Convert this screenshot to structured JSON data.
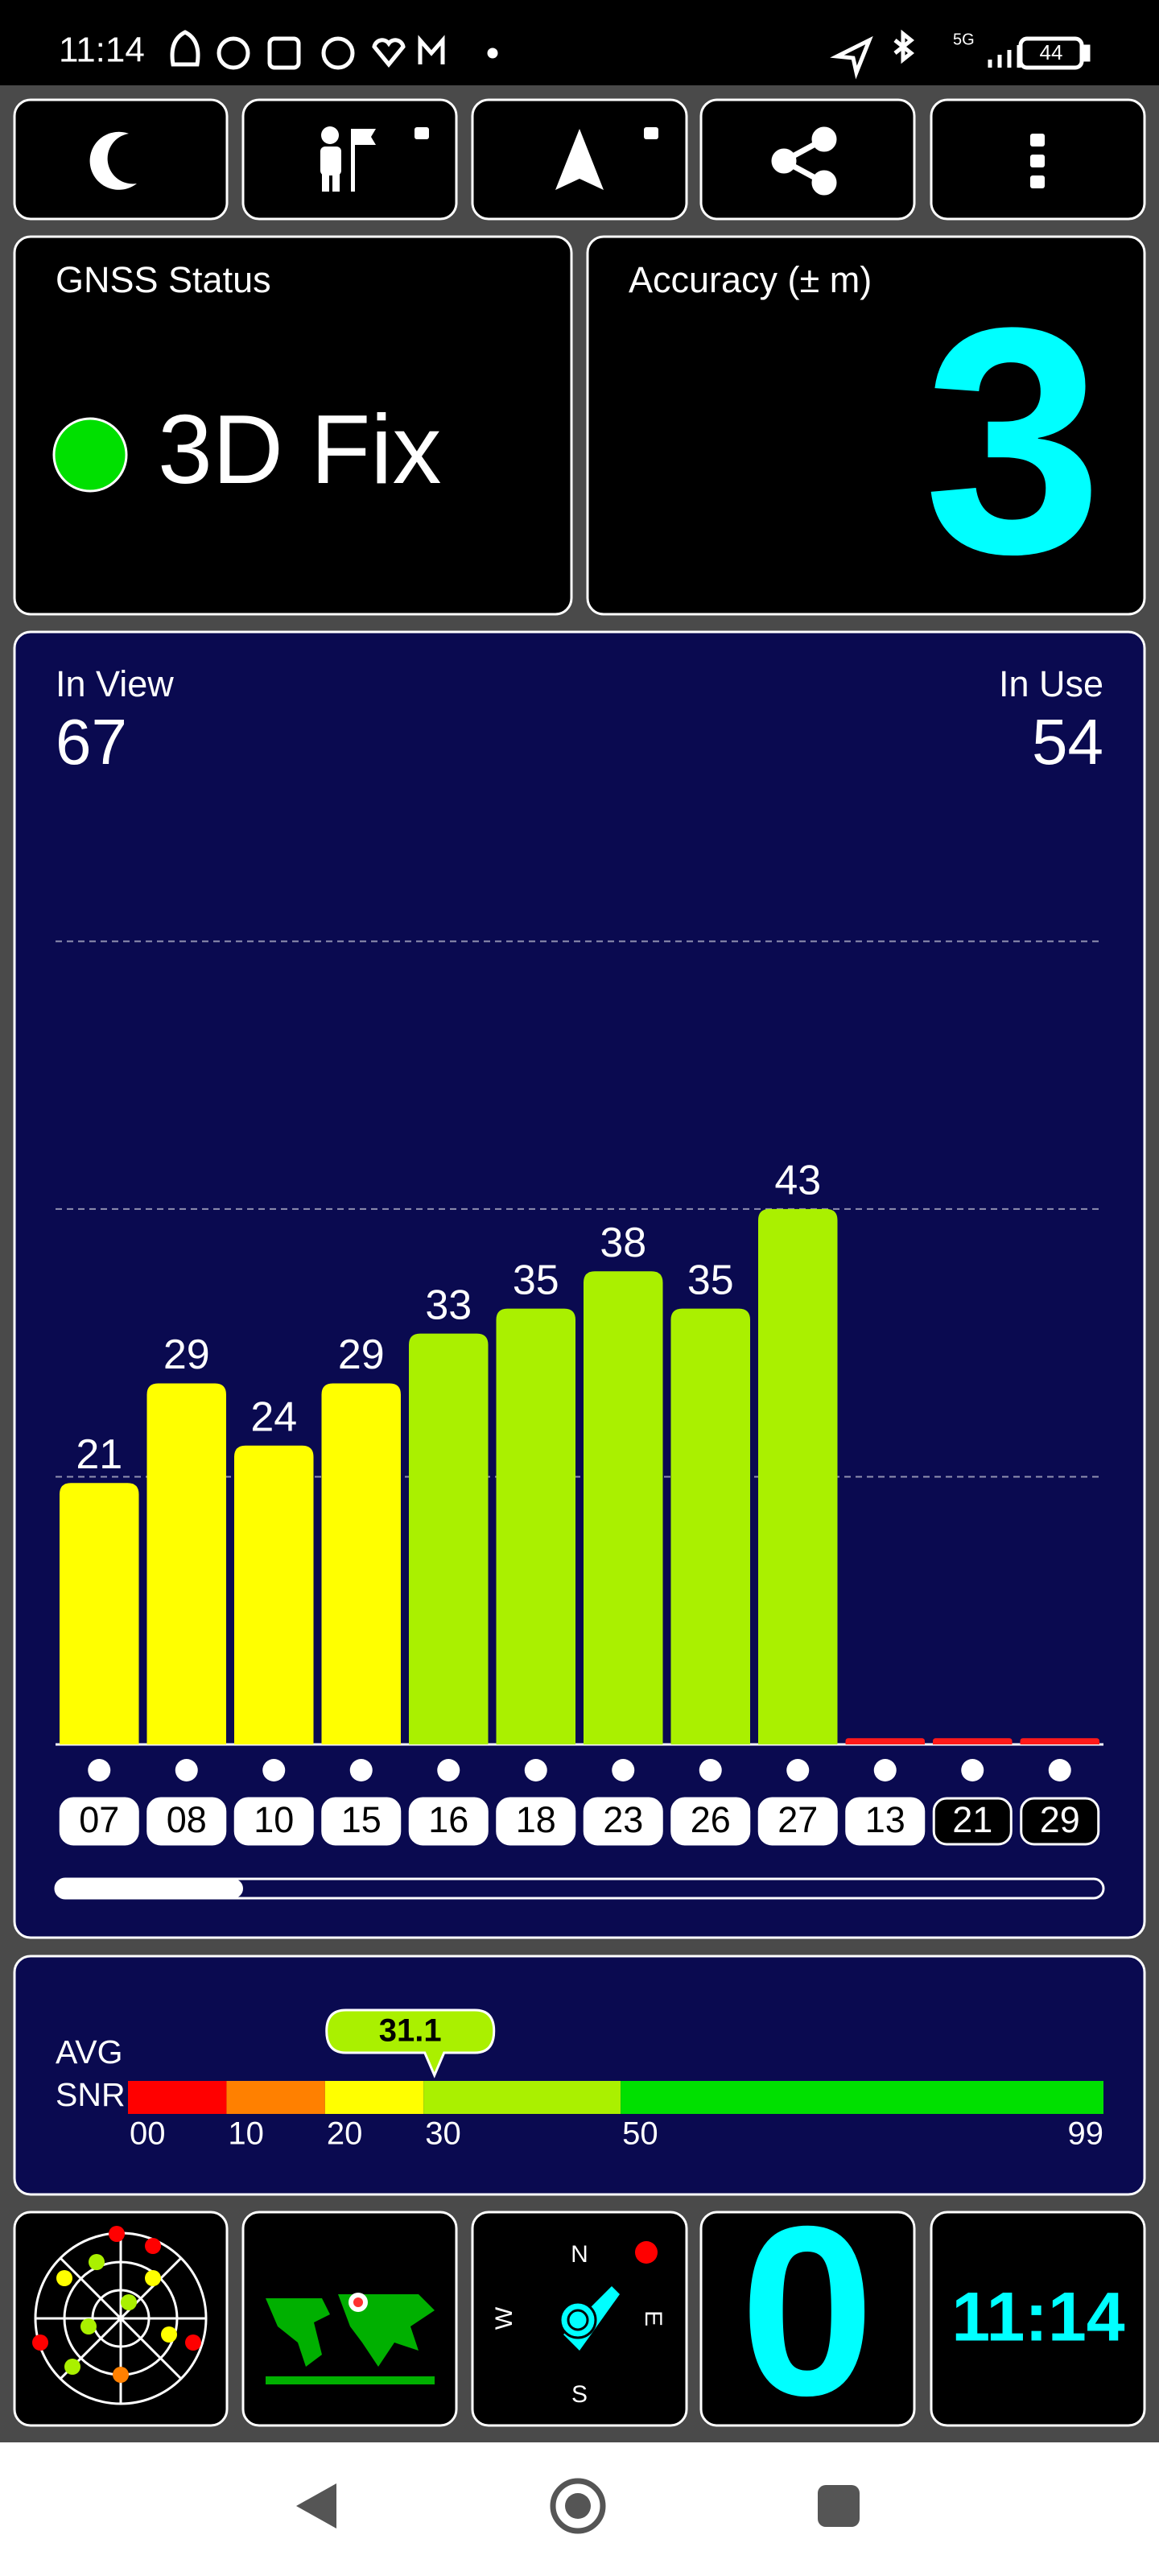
{
  "status_bar": {
    "time": "11:14",
    "network": "5G",
    "battery": "44"
  },
  "gnss_status": {
    "title": "GNSS Status",
    "value": "3D Fix"
  },
  "accuracy": {
    "title": "Accuracy (± m)",
    "value": 3
  },
  "satellites": {
    "in_view_label": "In View",
    "in_view": 67,
    "in_use_label": "In Use",
    "in_use": 54
  },
  "chart_data": {
    "type": "bar",
    "categories": [
      "07",
      "08",
      "10",
      "15",
      "16",
      "18",
      "23",
      "26",
      "27",
      "13",
      "21",
      "29"
    ],
    "values": [
      21,
      29,
      24,
      29,
      33,
      35,
      38,
      35,
      43,
      0.5,
      0.5,
      0.5
    ],
    "value_labels": [
      "21",
      "29",
      "24",
      "29",
      "33",
      "35",
      "38",
      "35",
      "43",
      null,
      null,
      null
    ],
    "colors": [
      "#ffff00",
      "#ffff00",
      "#ffff00",
      "#ffff00",
      "#aaf000",
      "#aaf000",
      "#aaf000",
      "#aaf000",
      "#aaf000",
      "#ff1a1a",
      "#ff1a1a",
      "#ff1a1a"
    ],
    "badge_filled": [
      true,
      true,
      true,
      true,
      true,
      true,
      true,
      true,
      true,
      true,
      false,
      false
    ],
    "ylim": [
      0,
      75
    ],
    "yticks": [
      21.5,
      43,
      64.5
    ],
    "grid": true
  },
  "snr": {
    "labels": [
      "AVG",
      "SNR"
    ],
    "avg": 31.1,
    "avg_label": "31.1",
    "xlim": [
      0,
      99
    ],
    "ticks": [
      {
        "value": 0,
        "label": "00"
      },
      10,
      20,
      30,
      50,
      99
    ],
    "segments": [
      {
        "from": 0,
        "to": 10,
        "color": "#ff0000"
      },
      {
        "from": 10,
        "to": 20,
        "color": "#ff8000"
      },
      {
        "from": 20,
        "to": 30,
        "color": "#ffff00"
      },
      {
        "from": 30,
        "to": 50,
        "color": "#aaf000"
      },
      {
        "from": 50,
        "to": 99,
        "color": "#00e000"
      }
    ]
  },
  "bottom": {
    "compass": [
      "N",
      "E",
      "S",
      "W"
    ],
    "speed": 0,
    "clock": "11:14"
  }
}
